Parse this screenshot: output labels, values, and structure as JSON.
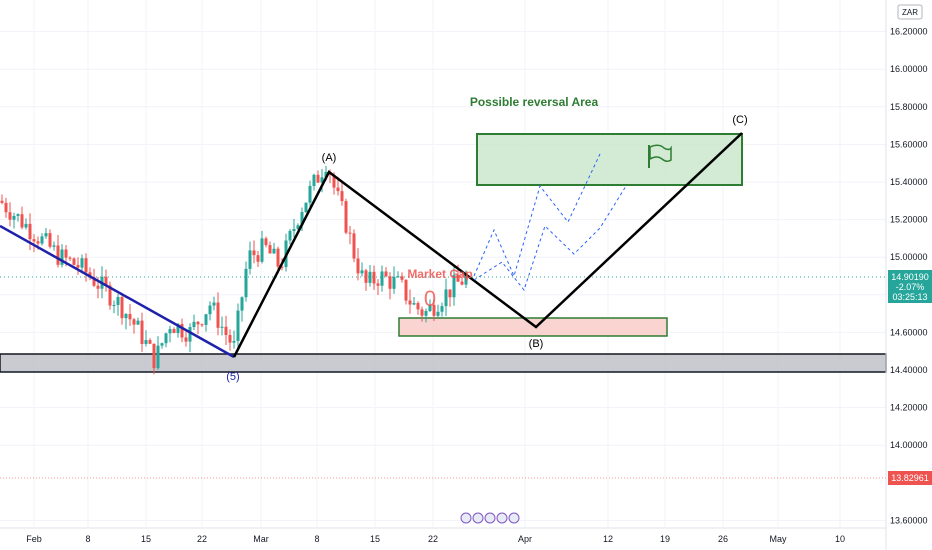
{
  "chart_data": {
    "type": "candlestick",
    "currency_label": "ZAR",
    "y_ticks": [
      "16.20000",
      "16.00000",
      "15.80000",
      "15.60000",
      "15.40000",
      "15.20000",
      "15.00000",
      "14.80000",
      "14.60000",
      "14.40000",
      "14.20000",
      "14.00000",
      "13.60000"
    ],
    "x_ticks": [
      "Feb",
      "8",
      "15",
      "22",
      "Mar",
      "8",
      "15",
      "22",
      "Apr",
      "12",
      "19",
      "26",
      "May",
      "10"
    ],
    "ylim": [
      13.55,
      16.32
    ],
    "grid": true,
    "current_price": {
      "value": "14.90190",
      "change": "-2.07%",
      "countdown": "03:25:13",
      "color": "#26a69a"
    },
    "low_price": {
      "value": "13.82961",
      "color": "#ef5350"
    },
    "annotations": {
      "reversal_label": "Possible reversal Area",
      "market_gap_label": "Market Gap",
      "gap_marker": "0",
      "wave_labels": [
        "(5)",
        "(A)",
        "(B)",
        "(C)"
      ]
    },
    "waves": {
      "A": [
        {
          "x": 14.46
        },
        {
          "x": 15.46
        }
      ],
      "projection": [
        14.46,
        15.46,
        14.63,
        15.67
      ]
    },
    "zones": [
      {
        "name": "support",
        "from": 14.39,
        "to": 14.49,
        "color": "#b2b5be"
      },
      {
        "name": "gap",
        "from": 14.58,
        "to": 14.68,
        "color": "#f8c9c4"
      },
      {
        "name": "reversal",
        "from": 15.39,
        "to": 15.67,
        "color": "#c8e6c9"
      }
    ],
    "colors": {
      "up": "#26a69a",
      "down": "#ef5350",
      "trend": "#1e22aa",
      "wave": "#000000",
      "zone_border": "#2e7d32",
      "projection": "#2962ff"
    }
  }
}
